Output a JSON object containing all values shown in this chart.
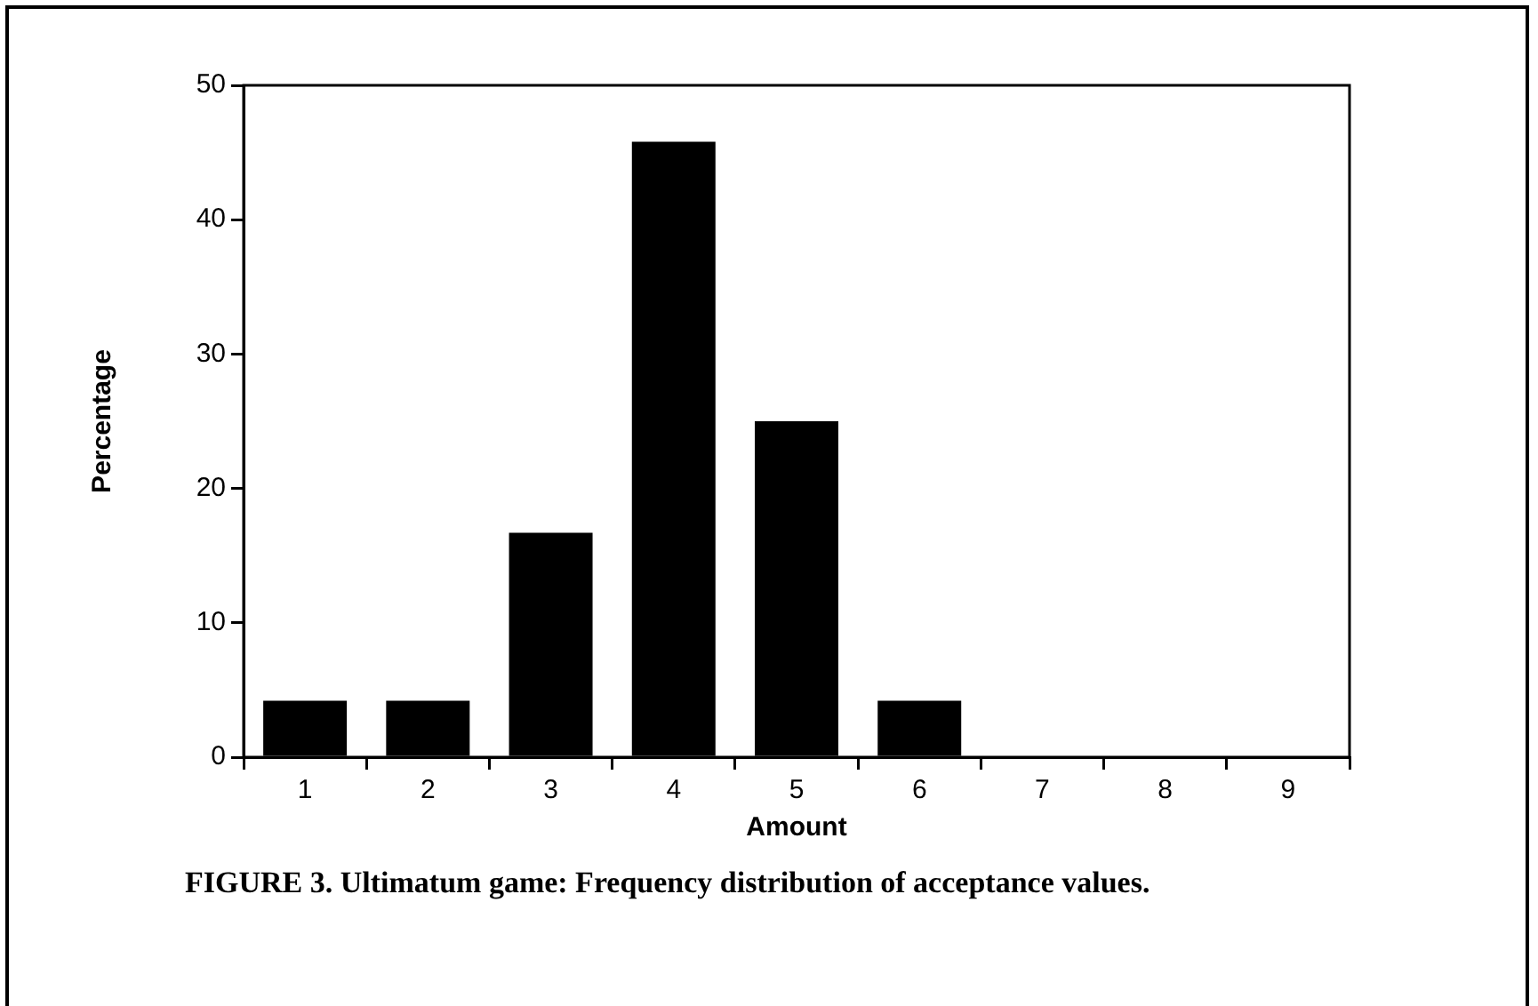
{
  "chart_data": {
    "type": "bar",
    "xlabel": "Amount",
    "ylabel": "Percentage",
    "categories": [
      "1",
      "2",
      "3",
      "4",
      "5",
      "6",
      "7",
      "8",
      "9"
    ],
    "values": [
      4.2,
      4.2,
      16.7,
      45.8,
      25,
      4.2,
      0,
      0,
      0
    ],
    "color": "#000000",
    "ylim": [
      0,
      50
    ],
    "yticks": [
      0,
      10,
      20,
      30,
      40,
      50
    ],
    "grid": false,
    "annotations": [
      "FIGURE 3. Ultimatum game: Frequency distribution of acceptance values."
    ]
  }
}
